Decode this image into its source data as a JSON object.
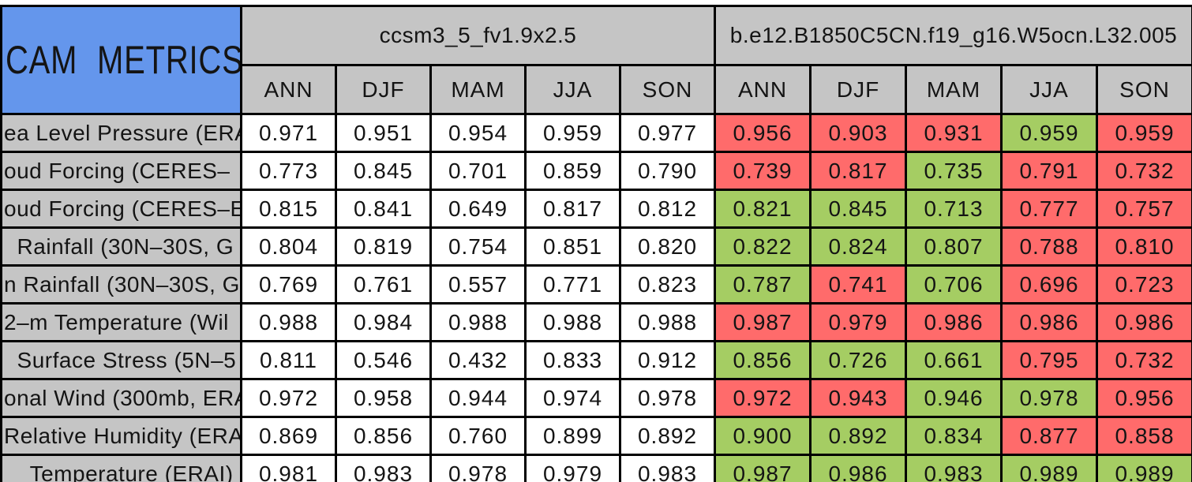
{
  "chart_data": {
    "type": "table",
    "title": "CAM METRICS",
    "model_headers": [
      "ccsm3_5_fv1.9x2.5",
      "b.e12.B1850C5CN.f19_g16.W5ocn.L32.005"
    ],
    "seasons": [
      "ANN",
      "DJF",
      "MAM",
      "JJA",
      "SON"
    ],
    "colors": {
      "title_bg": "#6496ec",
      "header_bg": "#c5c5c5",
      "label_bg": "#c5c5c5",
      "model1_cell_bg": "#ffffff",
      "better_green": "#a5cd63",
      "worse_red": "#ff6b6b",
      "border": "#000000",
      "text": "#141414"
    },
    "rows": [
      {
        "label": "ea Level Pressure (ERA",
        "model1": [
          "0.971",
          "0.951",
          "0.954",
          "0.959",
          "0.977"
        ],
        "model2": [
          "0.956",
          "0.903",
          "0.931",
          "0.959",
          "0.959"
        ],
        "model2_better": [
          false,
          false,
          false,
          true,
          false
        ]
      },
      {
        "label": "oud Forcing (CERES–",
        "model1": [
          "0.773",
          "0.845",
          "0.701",
          "0.859",
          "0.790"
        ],
        "model2": [
          "0.739",
          "0.817",
          "0.735",
          "0.791",
          "0.732"
        ],
        "model2_better": [
          false,
          false,
          true,
          false,
          false
        ]
      },
      {
        "label": "oud Forcing (CERES–E",
        "model1": [
          "0.815",
          "0.841",
          "0.649",
          "0.817",
          "0.812"
        ],
        "model2": [
          "0.821",
          "0.845",
          "0.713",
          "0.777",
          "0.757"
        ],
        "model2_better": [
          true,
          true,
          true,
          false,
          false
        ]
      },
      {
        "label": "  Rainfall (30N–30S, G",
        "model1": [
          "0.804",
          "0.819",
          "0.754",
          "0.851",
          "0.820"
        ],
        "model2": [
          "0.822",
          "0.824",
          "0.807",
          "0.788",
          "0.810"
        ],
        "model2_better": [
          true,
          true,
          true,
          false,
          false
        ]
      },
      {
        "label": "n Rainfall (30N–30S, G",
        "model1": [
          "0.769",
          "0.761",
          "0.557",
          "0.771",
          "0.823"
        ],
        "model2": [
          "0.787",
          "0.741",
          "0.706",
          "0.696",
          "0.723"
        ],
        "model2_better": [
          true,
          false,
          true,
          false,
          false
        ]
      },
      {
        "label": "2–m Temperature (Wil",
        "model1": [
          "0.988",
          "0.984",
          "0.988",
          "0.988",
          "0.988"
        ],
        "model2": [
          "0.987",
          "0.979",
          "0.986",
          "0.986",
          "0.986"
        ],
        "model2_better": [
          false,
          false,
          false,
          false,
          false
        ]
      },
      {
        "label": "  Surface Stress (5N–5",
        "model1": [
          "0.811",
          "0.546",
          "0.432",
          "0.833",
          "0.912"
        ],
        "model2": [
          "0.856",
          "0.726",
          "0.661",
          "0.795",
          "0.732"
        ],
        "model2_better": [
          true,
          true,
          true,
          false,
          false
        ]
      },
      {
        "label": "onal Wind (300mb, ERA",
        "model1": [
          "0.972",
          "0.958",
          "0.944",
          "0.974",
          "0.978"
        ],
        "model2": [
          "0.972",
          "0.943",
          "0.946",
          "0.978",
          "0.956"
        ],
        "model2_better": [
          false,
          false,
          true,
          true,
          false
        ]
      },
      {
        "label": "Relative Humidity (ERAI",
        "model1": [
          "0.869",
          "0.856",
          "0.760",
          "0.899",
          "0.892"
        ],
        "model2": [
          "0.900",
          "0.892",
          "0.834",
          "0.877",
          "0.858"
        ],
        "model2_better": [
          true,
          true,
          true,
          false,
          false
        ]
      },
      {
        "label": "    Temperature (ERAI)",
        "model1": [
          "0.981",
          "0.983",
          "0.978",
          "0.979",
          "0.983"
        ],
        "model2": [
          "0.987",
          "0.986",
          "0.983",
          "0.989",
          "0.989"
        ],
        "model2_better": [
          true,
          true,
          true,
          true,
          true
        ]
      }
    ]
  }
}
